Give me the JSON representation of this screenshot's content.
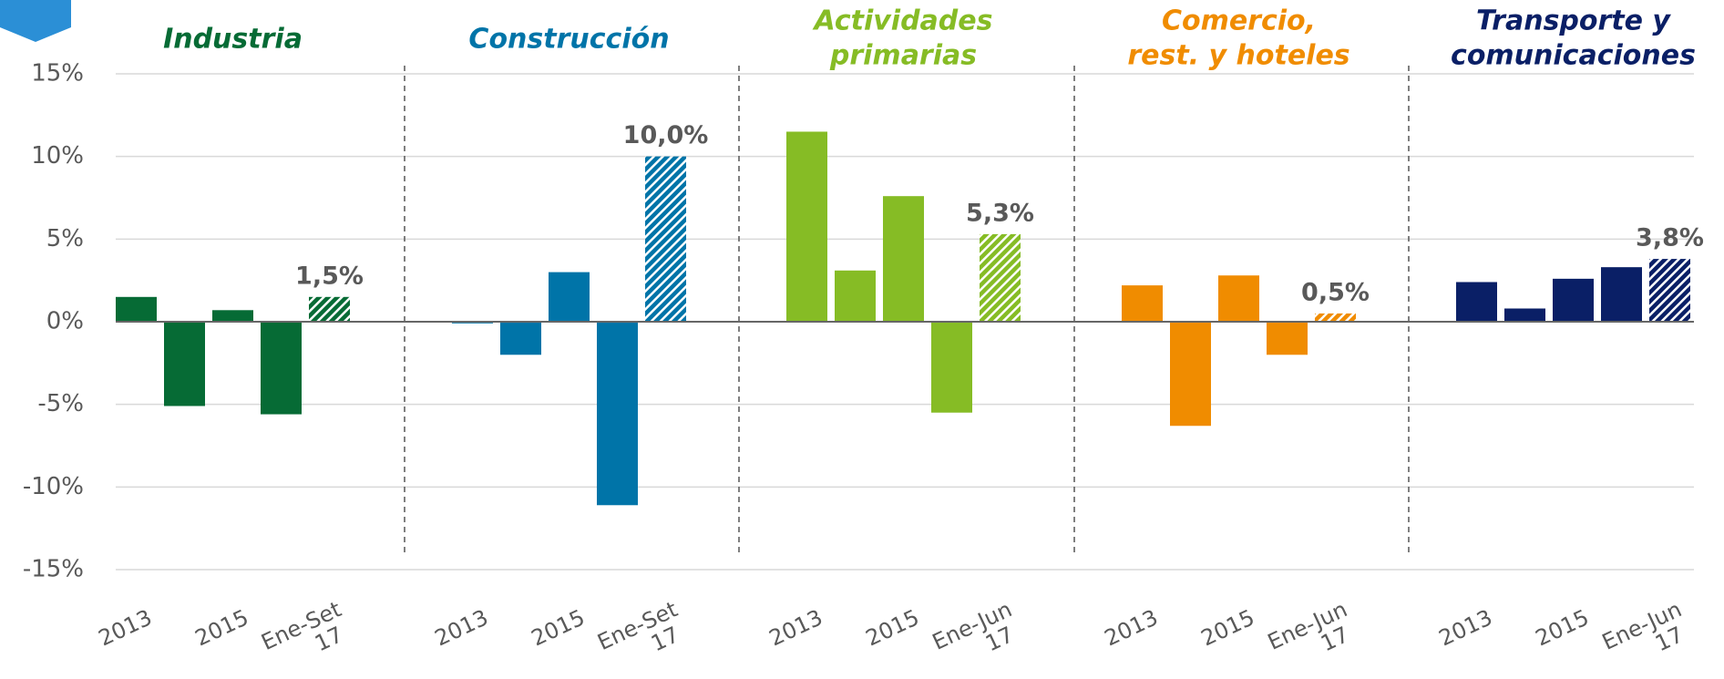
{
  "chart_data": {
    "type": "bar",
    "ylim": [
      -15,
      15
    ],
    "yticks": [
      {
        "value": -15,
        "label": "-15%"
      },
      {
        "value": -10,
        "label": "-10%"
      },
      {
        "value": -5,
        "label": "-5%"
      },
      {
        "value": 0,
        "label": "0%"
      },
      {
        "value": 5,
        "label": "5%"
      },
      {
        "value": 10,
        "label": "10%"
      },
      {
        "value": 15,
        "label": "15%"
      }
    ],
    "grid": true,
    "panels": [
      {
        "title": [
          "Industria"
        ],
        "color": "#066b35",
        "categories": [
          "2013",
          null,
          "2015",
          null,
          "Ene-Set 17"
        ],
        "values": [
          1.5,
          -5.1,
          0.7,
          -5.6,
          1.5
        ],
        "value_labels": [
          null,
          null,
          null,
          null,
          "1,5%"
        ],
        "hatched": [
          false,
          false,
          false,
          false,
          true
        ]
      },
      {
        "title": [
          "Construcción"
        ],
        "color": "#0074a8",
        "categories": [
          "2013",
          null,
          "2015",
          null,
          "Ene-Set 17"
        ],
        "values": [
          -0.1,
          -2.0,
          3.0,
          -11.1,
          10.0
        ],
        "value_labels": [
          null,
          null,
          null,
          null,
          "10,0%"
        ],
        "hatched": [
          false,
          false,
          false,
          false,
          true
        ]
      },
      {
        "title": [
          "Actividades",
          "primarias"
        ],
        "color": "#86bc25",
        "categories": [
          "2013",
          null,
          "2015",
          null,
          "Ene-Jun 17"
        ],
        "values": [
          11.5,
          3.1,
          7.6,
          -5.5,
          5.3
        ],
        "value_labels": [
          null,
          null,
          null,
          null,
          "5,3%"
        ],
        "hatched": [
          false,
          false,
          false,
          false,
          true
        ]
      },
      {
        "title": [
          "Comercio,",
          "rest. y hoteles"
        ],
        "color": "#f08c00",
        "categories": [
          "2013",
          null,
          "2015",
          null,
          "Ene-Jun 17"
        ],
        "values": [
          2.2,
          -6.3,
          2.8,
          -2.0,
          0.5
        ],
        "value_labels": [
          null,
          null,
          null,
          null,
          "0,5%"
        ],
        "hatched": [
          false,
          false,
          false,
          false,
          true
        ]
      },
      {
        "title": [
          "Transporte y",
          "comunicaciones"
        ],
        "color": "#0a1f66",
        "categories": [
          "2013",
          null,
          "2015",
          null,
          "Ene-Jun 17"
        ],
        "values": [
          2.4,
          0.8,
          2.6,
          3.3,
          3.8
        ],
        "value_labels": [
          null,
          null,
          null,
          null,
          "3,8%"
        ],
        "hatched": [
          false,
          false,
          false,
          false,
          true
        ]
      }
    ]
  }
}
